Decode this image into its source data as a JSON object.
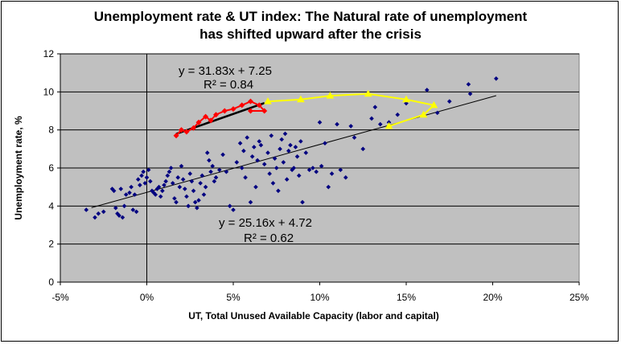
{
  "chart_data": {
    "type": "scatter",
    "title_line1": "Unemployment rate & UT index: The Natural rate of unemployment",
    "title_line2": "has shifted upward after the crisis",
    "xlabel": "UT, Total Unused Available  Capacity  (labor and capital)",
    "ylabel": "Unemployment  rate, %",
    "xlim": [
      -0.05,
      0.25
    ],
    "ylim": [
      0,
      12
    ],
    "x_ticks": [
      -0.05,
      0,
      0.05,
      0.1,
      0.15,
      0.2,
      0.25
    ],
    "x_tick_labels": [
      "-5%",
      "0%",
      "5%",
      "10%",
      "15%",
      "20%",
      "25%"
    ],
    "y_ticks": [
      0,
      2,
      4,
      6,
      8,
      10,
      12
    ],
    "y_tick_labels": [
      "0",
      "2",
      "4",
      "6",
      "8",
      "10",
      "12"
    ],
    "grid": "horizontal",
    "plot_background": "#c0c0c0",
    "series": [
      {
        "color": "#000080",
        "marker": "diamond",
        "points": [
          [
            -0.035,
            3.8
          ],
          [
            -0.03,
            3.4
          ],
          [
            -0.028,
            3.6
          ],
          [
            -0.025,
            3.7
          ],
          [
            -0.02,
            4.9
          ],
          [
            -0.019,
            4.8
          ],
          [
            -0.018,
            3.9
          ],
          [
            -0.017,
            3.6
          ],
          [
            -0.016,
            3.5
          ],
          [
            -0.015,
            4.9
          ],
          [
            -0.014,
            3.4
          ],
          [
            -0.013,
            4.0
          ],
          [
            -0.012,
            4.6
          ],
          [
            -0.01,
            4.7
          ],
          [
            -0.009,
            5.0
          ],
          [
            -0.008,
            3.8
          ],
          [
            -0.007,
            4.6
          ],
          [
            -0.006,
            3.7
          ],
          [
            -0.005,
            5.4
          ],
          [
            -0.004,
            5.1
          ],
          [
            -0.003,
            5.6
          ],
          [
            -0.002,
            5.8
          ],
          [
            -0.001,
            5.2
          ],
          [
            0.0,
            5.5
          ],
          [
            0.001,
            5.9
          ],
          [
            0.002,
            5.3
          ],
          [
            0.003,
            4.8
          ],
          [
            0.004,
            4.7
          ],
          [
            0.005,
            4.6
          ],
          [
            0.006,
            4.9
          ],
          [
            0.007,
            5.0
          ],
          [
            0.008,
            4.5
          ],
          [
            0.009,
            4.8
          ],
          [
            0.01,
            5.1
          ],
          [
            0.011,
            5.3
          ],
          [
            0.012,
            5.6
          ],
          [
            0.013,
            5.8
          ],
          [
            0.014,
            6.0
          ],
          [
            0.015,
            5.2
          ],
          [
            0.016,
            4.4
          ],
          [
            0.017,
            4.2
          ],
          [
            0.018,
            5.5
          ],
          [
            0.019,
            5.0
          ],
          [
            0.02,
            6.1
          ],
          [
            0.021,
            5.4
          ],
          [
            0.022,
            4.9
          ],
          [
            0.023,
            4.5
          ],
          [
            0.024,
            4.0
          ],
          [
            0.025,
            5.7
          ],
          [
            0.026,
            5.3
          ],
          [
            0.027,
            4.8
          ],
          [
            0.028,
            4.2
          ],
          [
            0.029,
            3.9
          ],
          [
            0.03,
            4.3
          ],
          [
            0.031,
            5.2
          ],
          [
            0.032,
            5.6
          ],
          [
            0.033,
            4.6
          ],
          [
            0.034,
            5.0
          ],
          [
            0.035,
            6.8
          ],
          [
            0.036,
            6.4
          ],
          [
            0.037,
            5.8
          ],
          [
            0.038,
            6.1
          ],
          [
            0.039,
            5.3
          ],
          [
            0.04,
            5.5
          ],
          [
            0.042,
            5.9
          ],
          [
            0.044,
            6.7
          ],
          [
            0.046,
            5.8
          ],
          [
            0.048,
            4.0
          ],
          [
            0.05,
            3.8
          ],
          [
            0.052,
            6.3
          ],
          [
            0.054,
            7.3
          ],
          [
            0.055,
            6.0
          ],
          [
            0.056,
            6.9
          ],
          [
            0.057,
            5.5
          ],
          [
            0.058,
            7.6
          ],
          [
            0.06,
            4.2
          ],
          [
            0.061,
            6.6
          ],
          [
            0.062,
            7.1
          ],
          [
            0.063,
            5.0
          ],
          [
            0.064,
            6.4
          ],
          [
            0.065,
            7.4
          ],
          [
            0.066,
            7.2
          ],
          [
            0.068,
            6.2
          ],
          [
            0.07,
            6.8
          ],
          [
            0.071,
            5.7
          ],
          [
            0.072,
            7.7
          ],
          [
            0.073,
            5.2
          ],
          [
            0.074,
            6.5
          ],
          [
            0.075,
            6.0
          ],
          [
            0.076,
            4.8
          ],
          [
            0.077,
            7.0
          ],
          [
            0.078,
            7.5
          ],
          [
            0.079,
            6.3
          ],
          [
            0.08,
            7.8
          ],
          [
            0.081,
            5.4
          ],
          [
            0.082,
            6.9
          ],
          [
            0.083,
            7.2
          ],
          [
            0.084,
            5.9
          ],
          [
            0.085,
            6.0
          ],
          [
            0.086,
            7.1
          ],
          [
            0.087,
            6.6
          ],
          [
            0.088,
            5.6
          ],
          [
            0.089,
            7.4
          ],
          [
            0.09,
            4.2
          ],
          [
            0.092,
            6.8
          ],
          [
            0.094,
            5.9
          ],
          [
            0.096,
            6.0
          ],
          [
            0.098,
            5.8
          ],
          [
            0.1,
            8.4
          ],
          [
            0.101,
            6.1
          ],
          [
            0.103,
            7.3
          ],
          [
            0.105,
            5.0
          ],
          [
            0.107,
            5.7
          ],
          [
            0.11,
            8.3
          ],
          [
            0.112,
            5.9
          ],
          [
            0.115,
            5.5
          ],
          [
            0.118,
            8.2
          ],
          [
            0.12,
            7.6
          ],
          [
            0.125,
            7.0
          ],
          [
            0.13,
            8.6
          ],
          [
            0.132,
            9.2
          ],
          [
            0.135,
            8.3
          ],
          [
            0.14,
            8.4
          ],
          [
            0.145,
            8.8
          ],
          [
            0.15,
            9.4
          ],
          [
            0.16,
            8.8
          ],
          [
            0.162,
            10.1
          ],
          [
            0.168,
            8.9
          ],
          [
            0.175,
            9.5
          ],
          [
            0.186,
            10.4
          ],
          [
            0.187,
            9.9
          ],
          [
            0.202,
            10.7
          ]
        ]
      },
      {
        "color": "#ff0000",
        "marker": "diamond",
        "line": true,
        "points": [
          [
            0.017,
            7.7
          ],
          [
            0.02,
            8.0
          ],
          [
            0.023,
            7.9
          ],
          [
            0.027,
            8.1
          ],
          [
            0.03,
            8.4
          ],
          [
            0.034,
            8.7
          ],
          [
            0.037,
            8.5
          ],
          [
            0.04,
            8.8
          ],
          [
            0.045,
            9.0
          ],
          [
            0.05,
            9.1
          ],
          [
            0.055,
            9.3
          ],
          [
            0.06,
            9.5
          ],
          [
            0.065,
            9.3
          ],
          [
            0.068,
            9.0
          ],
          [
            0.06,
            9.0
          ]
        ]
      },
      {
        "color": "#ffff00",
        "marker": "triangle",
        "line": true,
        "points": [
          [
            0.07,
            9.5
          ],
          [
            0.089,
            9.6
          ],
          [
            0.106,
            9.8
          ],
          [
            0.128,
            9.9
          ],
          [
            0.15,
            9.6
          ],
          [
            0.166,
            9.3
          ],
          [
            0.16,
            8.8
          ],
          [
            0.14,
            8.2
          ]
        ]
      }
    ],
    "trendlines": [
      {
        "slope": 25.16,
        "intercept": 4.72,
        "x_range": [
          -0.032,
          0.202
        ],
        "color": "#000000"
      },
      {
        "slope": 31.83,
        "intercept": 7.25,
        "x_range": [
          0.017,
          0.068
        ],
        "color": "#000000"
      }
    ],
    "annotations": {
      "upper_eq": "y = 31.83x + 7.25",
      "upper_r2": "R² = 0.84",
      "lower_eq": "y = 25.16x + 4.72",
      "lower_r2": "R² = 0.62"
    }
  }
}
